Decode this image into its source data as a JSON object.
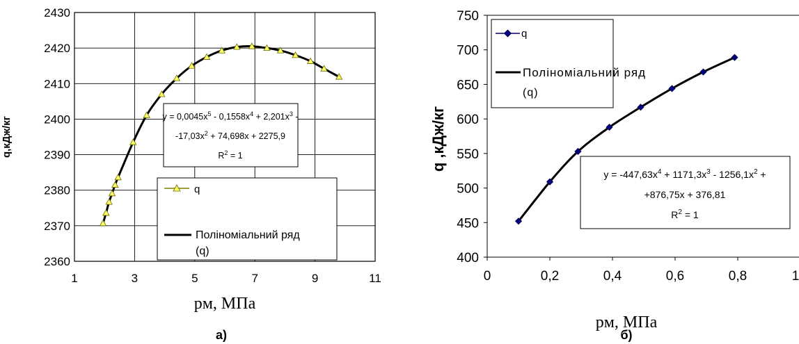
{
  "chart_data": [
    {
      "type": "scatter",
      "panel_label": "a)",
      "xlabel": "pм, МПа",
      "ylabel": "q,кДж/кг",
      "xlim": [
        1,
        11
      ],
      "ylim": [
        2360,
        2430
      ],
      "xticks": [
        "1",
        "3",
        "5",
        "7",
        "9",
        "11"
      ],
      "yticks": [
        "2360",
        "2370",
        "2380",
        "2390",
        "2400",
        "2410",
        "2420",
        "2430"
      ],
      "grid": true,
      "series": [
        {
          "name": "q",
          "marker": "triangle",
          "color": "#ffff66",
          "x": [
            1.95,
            2.05,
            2.15,
            2.25,
            2.35,
            2.45,
            2.95,
            3.4,
            3.9,
            4.4,
            4.9,
            5.4,
            5.9,
            6.4,
            6.9,
            7.4,
            7.85,
            8.35,
            8.85,
            9.3,
            9.8
          ],
          "y": [
            2370.7,
            2373.6,
            2376.7,
            2379.1,
            2381.5,
            2383.6,
            2393.5,
            2401.1,
            2407.0,
            2411.5,
            2415.0,
            2417.5,
            2419.3,
            2420.3,
            2420.5,
            2420.0,
            2419.3,
            2418.0,
            2416.3,
            2414.2,
            2411.9
          ]
        },
        {
          "name": "Поліноміальний ряд (q)",
          "type": "line",
          "color": "#000000"
        }
      ],
      "annotation": {
        "lines": [
          "y = 0,0045x5 - 0,1558x4 + 2,201x3 -",
          "-17,03x2 + 74,698x + 2275,9",
          "R2 = 1"
        ]
      },
      "legend": {
        "position": "bottom-right",
        "entries": [
          "q",
          "Поліноміальний ряд",
          "(q)"
        ]
      }
    },
    {
      "type": "scatter",
      "panel_label": "б)",
      "xlabel": "pм, МПа",
      "ylabel": "q ,кДж/кг",
      "xlim": [
        0,
        1
      ],
      "ylim": [
        400,
        750
      ],
      "xticks": [
        "0",
        "0,2",
        "0,4",
        "0,6",
        "0,8",
        "1"
      ],
      "yticks": [
        "400",
        "450",
        "500",
        "550",
        "600",
        "650",
        "700",
        "750"
      ],
      "grid": false,
      "series": [
        {
          "name": "q",
          "marker": "diamond",
          "color": "#000080",
          "x": [
            0.1,
            0.2,
            0.29,
            0.39,
            0.49,
            0.59,
            0.69,
            0.79
          ],
          "y": [
            452,
            509,
            553,
            588,
            617,
            644,
            668,
            689
          ]
        },
        {
          "name": "Поліноміальний ряд (q)",
          "type": "line",
          "color": "#000000"
        }
      ],
      "annotation": {
        "lines": [
          "y = -447,63x4 + 1171,3x3 - 1256,1x2 +",
          "+876,75x + 376,81",
          "R2 = 1"
        ]
      },
      "legend": {
        "position": "top-left",
        "entries": [
          "q",
          "Поліноміальний ряд",
          "(q)"
        ]
      }
    }
  ]
}
